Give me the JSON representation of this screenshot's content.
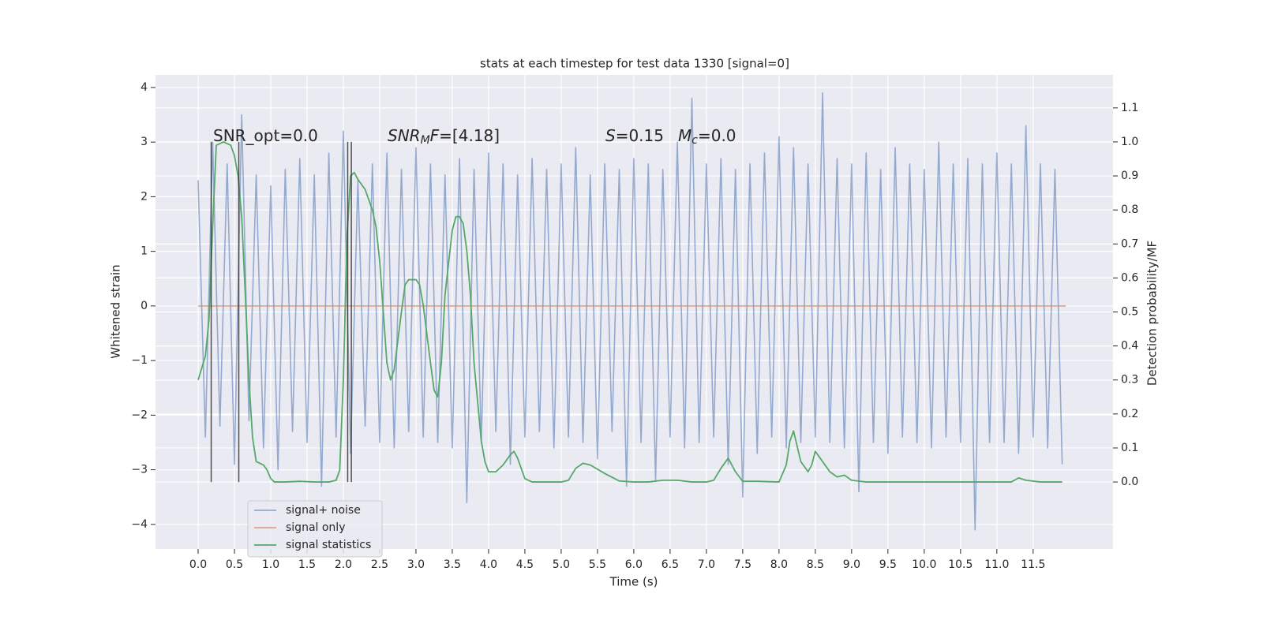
{
  "chart_data": {
    "type": "line",
    "title": "stats at each timestep for test data 1330 [signal=0]",
    "xlabel": "Time (s)",
    "ylabel": "Whitened strain",
    "y2label": "Detection probability/MF",
    "xlim": [
      -0.587,
      12.6
    ],
    "ylim": [
      -4.45,
      4.23
    ],
    "y2lim": [
      -0.197,
      1.197
    ],
    "grid": true,
    "legend": "lower left",
    "xticks": [
      {
        "value": 0,
        "label": "0.0"
      },
      0.5,
      {
        "value": 1,
        "label": "1.0"
      },
      1.5,
      {
        "value": 2,
        "label": "2.0"
      },
      2.5,
      {
        "value": 3,
        "label": "3.0"
      },
      3.5,
      {
        "value": 4,
        "label": "4.0"
      },
      4.5,
      {
        "value": 5,
        "label": "5.0"
      },
      5.5,
      {
        "value": 6,
        "label": "6.0"
      },
      6.5,
      {
        "value": 7,
        "label": "7.0"
      },
      7.5,
      {
        "value": 8,
        "label": "8.0"
      },
      8.5,
      {
        "value": 9,
        "label": "9.0"
      },
      9.5,
      {
        "value": 10,
        "label": "10.0"
      },
      10.5,
      {
        "value": 11,
        "label": "11.0"
      },
      11.5
    ],
    "yticks": [
      {
        "value": -4,
        "label": "−4"
      },
      {
        "value": -3,
        "label": "−3"
      },
      {
        "value": -2,
        "label": "−2"
      },
      {
        "value": -1,
        "label": "−1"
      },
      0,
      1,
      2,
      3,
      4
    ],
    "y2ticks": [
      {
        "value": 0,
        "label": "0.0"
      },
      0.1,
      0.2,
      0.3,
      0.4,
      0.5,
      0.6,
      0.7,
      0.8,
      0.9,
      {
        "value": 1,
        "label": "1.0"
      },
      1.1
    ],
    "series": [
      {
        "name": "signal+ noise",
        "color": "#4c72b0",
        "opacity": 0.55,
        "x": [
          0.0,
          0.1,
          0.2,
          0.3,
          0.4,
          0.5,
          0.6,
          0.7,
          0.8,
          0.9,
          1.0,
          1.1,
          1.2,
          1.3,
          1.4,
          1.5,
          1.6,
          1.7,
          1.8,
          1.9,
          2.0,
          2.1,
          2.2,
          2.3,
          2.4,
          2.5,
          2.6,
          2.7,
          2.8,
          2.9,
          3.0,
          3.1,
          3.2,
          3.3,
          3.4,
          3.5,
          3.6,
          3.7,
          3.8,
          3.9,
          4.0,
          4.1,
          4.2,
          4.3,
          4.4,
          4.5,
          4.6,
          4.7,
          4.8,
          4.9,
          5.0,
          5.1,
          5.2,
          5.3,
          5.4,
          5.5,
          5.6,
          5.7,
          5.8,
          5.9,
          6.0,
          6.1,
          6.2,
          6.3,
          6.4,
          6.5,
          6.6,
          6.7,
          6.8,
          6.9,
          7.0,
          7.1,
          7.2,
          7.3,
          7.4,
          7.5,
          7.6,
          7.7,
          7.8,
          7.9,
          8.0,
          8.1,
          8.2,
          8.3,
          8.4,
          8.5,
          8.6,
          8.7,
          8.8,
          8.9,
          9.0,
          9.1,
          9.2,
          9.3,
          9.4,
          9.5,
          9.6,
          9.7,
          9.8,
          9.9,
          10.0,
          10.1,
          10.2,
          10.3,
          10.4,
          10.5,
          10.6,
          10.7,
          10.8,
          10.9,
          11.0,
          11.1,
          11.2,
          11.3,
          11.4,
          11.5,
          11.6,
          11.7,
          11.8,
          11.9
        ],
        "values": [
          2.3,
          -2.4,
          3.0,
          -2.2,
          2.6,
          -2.9,
          3.5,
          -2.1,
          2.4,
          -2.6,
          2.2,
          -3.0,
          2.5,
          -2.3,
          2.7,
          -2.5,
          2.4,
          -3.3,
          2.8,
          -2.4,
          3.2,
          -2.7,
          2.3,
          -2.2,
          2.6,
          -2.5,
          2.8,
          -2.6,
          2.5,
          -2.3,
          2.9,
          -2.4,
          2.6,
          -2.5,
          2.4,
          -2.6,
          2.7,
          -3.6,
          2.5,
          -2.5,
          2.8,
          -2.3,
          2.6,
          -2.9,
          2.4,
          -2.4,
          2.7,
          -2.3,
          2.5,
          -2.6,
          2.6,
          -2.4,
          2.9,
          -2.5,
          2.4,
          -2.8,
          2.6,
          -2.3,
          2.5,
          -3.3,
          2.7,
          -2.5,
          2.6,
          -3.2,
          2.5,
          -2.4,
          3.0,
          -2.6,
          3.8,
          -2.5,
          2.6,
          -2.4,
          2.7,
          -2.9,
          2.5,
          -3.5,
          2.6,
          -2.7,
          2.8,
          -2.4,
          3.1,
          -2.6,
          2.9,
          -2.5,
          2.6,
          -2.4,
          3.9,
          -2.5,
          2.7,
          -2.6,
          2.6,
          -3.4,
          2.8,
          -2.5,
          2.5,
          -2.7,
          2.9,
          -2.4,
          2.6,
          -2.5,
          2.5,
          -2.6,
          3.0,
          -2.4,
          2.6,
          -2.5,
          2.7,
          -4.1,
          2.6,
          -2.5,
          2.8,
          -2.5,
          2.6,
          -2.7,
          3.3,
          -2.4,
          2.6,
          -2.6,
          2.5,
          -2.9
        ]
      },
      {
        "name": "signal only",
        "color": "#dd8452",
        "opacity": 0.7,
        "x": [
          0.0,
          11.95
        ],
        "values": [
          0,
          0
        ]
      },
      {
        "name": "signal statistics",
        "color": "#55a868",
        "opacity": 1,
        "axis": "y2",
        "x": [
          0.0,
          0.1,
          0.15,
          0.2,
          0.25,
          0.35,
          0.45,
          0.5,
          0.55,
          0.6,
          0.65,
          0.7,
          0.75,
          0.8,
          0.9,
          0.95,
          1.0,
          1.05,
          1.2,
          1.4,
          1.6,
          1.8,
          1.9,
          1.95,
          2.0,
          2.05,
          2.1,
          2.15,
          2.2,
          2.3,
          2.4,
          2.45,
          2.5,
          2.55,
          2.6,
          2.65,
          2.7,
          2.8,
          2.85,
          2.9,
          3.0,
          3.05,
          3.1,
          3.2,
          3.25,
          3.3,
          3.35,
          3.4,
          3.5,
          3.55,
          3.6,
          3.65,
          3.7,
          3.75,
          3.8,
          3.9,
          3.95,
          4.0,
          4.1,
          4.2,
          4.3,
          4.35,
          4.4,
          4.5,
          4.6,
          4.8,
          5.0,
          5.1,
          5.2,
          5.3,
          5.4,
          5.6,
          5.8,
          6.0,
          6.2,
          6.4,
          6.6,
          6.8,
          7.0,
          7.1,
          7.2,
          7.3,
          7.4,
          7.5,
          7.7,
          8.0,
          8.1,
          8.15,
          8.2,
          8.3,
          8.4,
          8.45,
          8.5,
          8.6,
          8.7,
          8.8,
          8.9,
          9.0,
          9.2,
          9.6,
          10.0,
          10.5,
          11.0,
          11.2,
          11.3,
          11.4,
          11.6,
          11.9
        ],
        "values": [
          0.3,
          0.37,
          0.48,
          0.75,
          0.99,
          1.0,
          0.99,
          0.96,
          0.9,
          0.78,
          0.55,
          0.3,
          0.13,
          0.06,
          0.05,
          0.035,
          0.01,
          0.0,
          0.0,
          0.002,
          0.0,
          0.0,
          0.005,
          0.035,
          0.3,
          0.72,
          0.9,
          0.91,
          0.89,
          0.86,
          0.8,
          0.75,
          0.65,
          0.5,
          0.35,
          0.3,
          0.33,
          0.5,
          0.58,
          0.595,
          0.595,
          0.58,
          0.52,
          0.35,
          0.27,
          0.25,
          0.35,
          0.55,
          0.74,
          0.78,
          0.78,
          0.76,
          0.68,
          0.55,
          0.35,
          0.12,
          0.06,
          0.03,
          0.03,
          0.05,
          0.08,
          0.09,
          0.07,
          0.01,
          0.0,
          0.0,
          0.0,
          0.005,
          0.04,
          0.055,
          0.05,
          0.025,
          0.003,
          0.0,
          0.0,
          0.005,
          0.005,
          0.0,
          0.0,
          0.005,
          0.04,
          0.07,
          0.03,
          0.002,
          0.002,
          0.0,
          0.05,
          0.12,
          0.15,
          0.06,
          0.03,
          0.05,
          0.09,
          0.06,
          0.03,
          0.015,
          0.02,
          0.005,
          0.0,
          0.0,
          0.0,
          0.0,
          0.0,
          0.0,
          0.012,
          0.005,
          0.0,
          0.0
        ]
      }
    ],
    "vlines": [
      0.18,
      0.56,
      2.06,
      2.11
    ],
    "vline_range": [
      0,
      1
    ],
    "vline_color": "#333333",
    "annotations": [
      [
        {
          "text": "SNR_opt=0.0"
        }
      ],
      [
        {
          "text": "SNR",
          "italic": true
        },
        {
          "text": "M",
          "italic": true,
          "sub": true
        },
        {
          "text": "F",
          "italic": true
        },
        {
          "text": "=[4.18]"
        }
      ],
      [
        {
          "text": "S",
          "italic": true
        },
        {
          "text": "=0.15"
        }
      ],
      [
        {
          "text": "M",
          "italic": true
        },
        {
          "text": "c",
          "italic": true,
          "sub": true
        },
        {
          "text": "=0.0"
        }
      ]
    ]
  }
}
